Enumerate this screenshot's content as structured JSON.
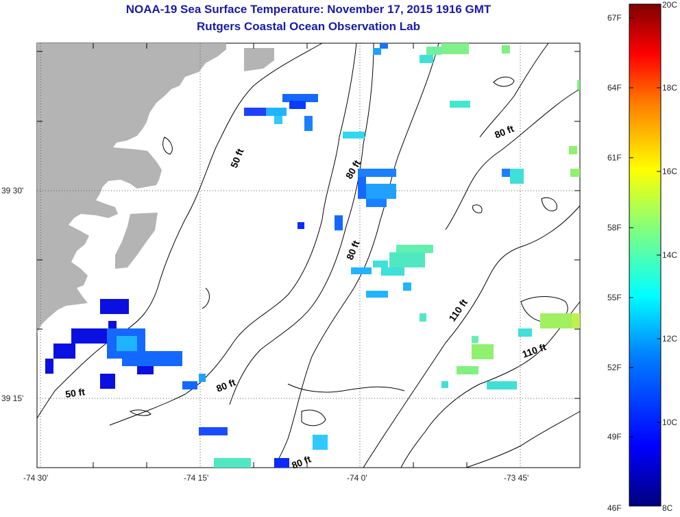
{
  "title": "NOAA-19 Sea Surface Temperature:  November 17, 2015 1916 GMT",
  "subtitle": "Rutgers Coastal Ocean Observation Lab",
  "x_ticks": [
    "-74 30'",
    "-74 15'",
    "-74 0'",
    "-73 45'"
  ],
  "y_ticks": [
    "39 30'",
    "39 15'"
  ],
  "contour_labels": [
    "50 ft",
    "80 ft",
    "80 ft",
    "80 ft",
    "80 ft",
    "80 ft",
    "50 ft",
    "110 ft",
    "110 ft"
  ],
  "colorbar": {
    "fahrenheit_labels": [
      "67F",
      "64F",
      "61F",
      "58F",
      "55F",
      "52F",
      "49F",
      "46F"
    ],
    "celsius_labels": [
      "20C",
      "18C",
      "16C",
      "14C",
      "12C",
      "10C",
      "8C"
    ],
    "colors": [
      "#00007f",
      "#0000ff",
      "#0080ff",
      "#00ffff",
      "#80ff80",
      "#ffff00",
      "#ff8000",
      "#ff0000",
      "#7f0000"
    ]
  },
  "colors": {
    "land": "#b4b4b4",
    "title": "#1a1aa6"
  }
}
